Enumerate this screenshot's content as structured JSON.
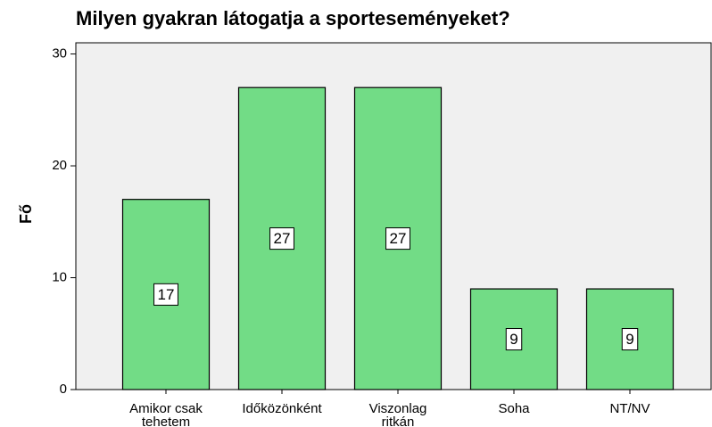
{
  "chart_data": {
    "type": "bar",
    "title": "Milyen gyakran látogatja a sporteseményeket?",
    "ylabel": "Fő",
    "categories": [
      "Amikor csak tehetem",
      "Időközönként",
      "Viszonlag ritkán",
      "Soha",
      "NT/NV"
    ],
    "values": [
      17,
      27,
      27,
      9,
      9
    ],
    "color": "#72dc86",
    "ylim": [
      0,
      31
    ],
    "yticks": [
      0,
      10,
      20,
      30
    ],
    "grid": false
  }
}
